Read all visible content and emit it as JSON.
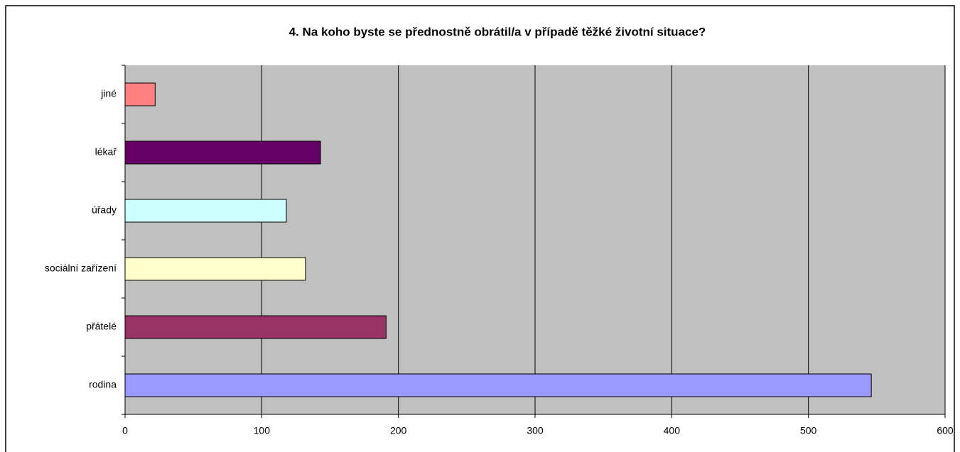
{
  "chart_data": {
    "type": "bar",
    "orientation": "horizontal",
    "title": "4. Na koho byste se přednostně obrátil/a v případě těžké životní situace?",
    "categories": [
      "rodina",
      "přátelé",
      "sociální zařízení",
      "úřady",
      "lékař",
      "jiné"
    ],
    "values": [
      546,
      191,
      132,
      118,
      143,
      22
    ],
    "colors": [
      "#9999ff",
      "#993366",
      "#ffffcc",
      "#ccffff",
      "#660066",
      "#ff8080"
    ],
    "xlim": [
      0,
      600
    ],
    "xticks": [
      0,
      100,
      200,
      300,
      400,
      500,
      600
    ],
    "grid": true
  }
}
